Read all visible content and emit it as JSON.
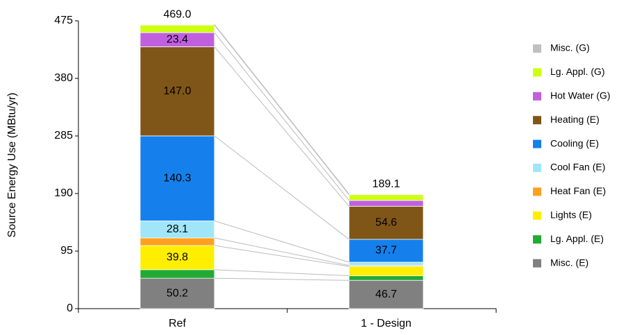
{
  "chart_data": {
    "type": "stacked_bar",
    "y_label": "Source Energy Use (MBtu/yr)",
    "categories": [
      "Ref",
      "1 - Design"
    ],
    "ylim": [
      0,
      475
    ],
    "yticks": [
      0,
      95,
      190,
      285,
      380,
      475
    ],
    "totals": [
      469.0,
      189.1
    ],
    "total_labels": [
      "469.0",
      "189.1"
    ],
    "series": [
      {
        "name": "Misc. (E)",
        "color": "#808080",
        "values": [
          50.2,
          46.7
        ],
        "value_labels": [
          "50.2",
          "46.7"
        ]
      },
      {
        "name": "Lg. Appl. (E)",
        "color": "#22aa33",
        "values": [
          14.1,
          7.5
        ],
        "value_labels": [
          null,
          null
        ]
      },
      {
        "name": "Lights (E)",
        "color": "#ffee00",
        "values": [
          39.8,
          15.5
        ],
        "value_labels": [
          "39.8",
          null
        ]
      },
      {
        "name": "Heat Fan (E)",
        "color": "#ffa020",
        "values": [
          12.6,
          1.5
        ],
        "value_labels": [
          null,
          null
        ]
      },
      {
        "name": "Cool Fan (E)",
        "color": "#a0e6f8",
        "values": [
          28.1,
          5.5
        ],
        "value_labels": [
          "28.1",
          null
        ]
      },
      {
        "name": "Cooling (E)",
        "color": "#1580ec",
        "values": [
          140.3,
          37.7
        ],
        "value_labels": [
          "140.3",
          "37.7"
        ]
      },
      {
        "name": "Heating (E)",
        "color": "#7f5618",
        "values": [
          147.0,
          54.6
        ],
        "value_labels": [
          "147.0",
          "54.6"
        ]
      },
      {
        "name": "Hot Water (G)",
        "color": "#c060e0",
        "values": [
          23.4,
          9.5
        ],
        "value_labels": [
          "23.4",
          null
        ]
      },
      {
        "name": "Lg. Appl. (G)",
        "color": "#ccff11",
        "values": [
          12.5,
          9.6
        ],
        "value_labels": [
          null,
          null
        ]
      },
      {
        "name": "Misc. (G)",
        "color": "#c0c0c0",
        "values": [
          1.0,
          1.0
        ],
        "value_labels": [
          null,
          null
        ]
      }
    ]
  }
}
